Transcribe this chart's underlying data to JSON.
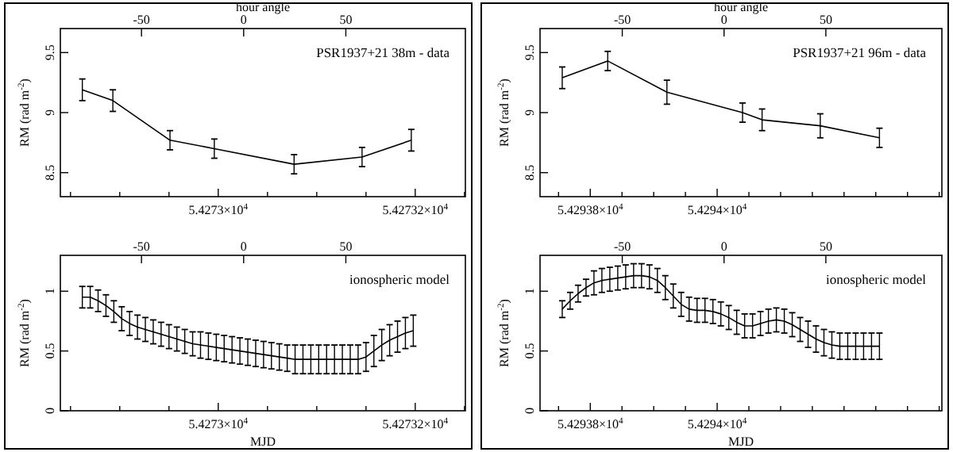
{
  "chart_data": [
    {
      "type": "line",
      "x2label": "hour angle",
      "ylabel": "RM (rad m$^{-2}$)",
      "annotations": [
        "PSR1937+21 38m - data"
      ],
      "xlim": [
        54272.8397,
        54273.2509
      ],
      "xticks": [
        {
          "value": 54272.85,
          "label": null
        },
        {
          "value": 54272.9,
          "label": null
        },
        {
          "value": 54272.95,
          "label": null
        },
        {
          "value": 54273,
          "label": "5.4273×10$^{4}$"
        },
        {
          "value": 54273.05,
          "label": null
        },
        {
          "value": 54273.1,
          "label": null
        },
        {
          "value": 54273.15,
          "label": null
        },
        {
          "value": 54273.2,
          "label": "5.42732×10$^{4}$"
        },
        {
          "value": 54273.25,
          "label": null
        }
      ],
      "x2lim": [
        -89.7,
        108.5
      ],
      "x2ticks": [
        -50,
        0,
        50
      ],
      "ylim": [
        8.3,
        9.7
      ],
      "yticks": [
        8.5,
        9,
        9.5
      ],
      "series": [
        {
          "color": "#000000",
          "x": [
            54272.862,
            54272.893,
            54272.951,
            54272.996,
            54273.077,
            54273.146,
            54273.196
          ],
          "values": [
            9.19,
            9.1,
            8.77,
            8.7,
            8.57,
            8.63,
            8.77
          ],
          "errors": [
            0.09,
            0.09,
            0.08,
            0.08,
            0.08,
            0.08,
            0.09
          ]
        }
      ]
    },
    {
      "type": "line",
      "xlabel": "MJD",
      "ylabel": "RM (rad m$^{-2}$)",
      "annotations": [
        "ionospheric model"
      ],
      "xlim": [
        54272.8397,
        54273.2509
      ],
      "xticks": [
        {
          "value": 54272.85,
          "label": null
        },
        {
          "value": 54272.9,
          "label": null
        },
        {
          "value": 54272.95,
          "label": null
        },
        {
          "value": 54273,
          "label": "5.4273×10$^{4}$"
        },
        {
          "value": 54273.05,
          "label": null
        },
        {
          "value": 54273.1,
          "label": null
        },
        {
          "value": 54273.15,
          "label": null
        },
        {
          "value": 54273.2,
          "label": "5.42732×10$^{4}$"
        },
        {
          "value": 54273.25,
          "label": null
        }
      ],
      "x2lim": [
        -89.7,
        108.5
      ],
      "x2ticks": [
        -50,
        0,
        50
      ],
      "ylim": [
        0,
        1.3
      ],
      "yticks": [
        0,
        0.5,
        1
      ],
      "series": [
        {
          "color": "#000000",
          "x": [
            54272.862,
            54272.87,
            54272.878,
            54272.886,
            54272.894,
            54272.902,
            54272.91,
            54272.918,
            54272.926,
            54272.934,
            54272.942,
            54272.95,
            54272.958,
            54272.966,
            54272.974,
            54272.982,
            54272.99,
            54272.998,
            54273.006,
            54273.014,
            54273.022,
            54273.03,
            54273.038,
            54273.046,
            54273.054,
            54273.062,
            54273.07,
            54273.078,
            54273.086,
            54273.094,
            54273.102,
            54273.11,
            54273.118,
            54273.126,
            54273.134,
            54273.142,
            54273.15,
            54273.158,
            54273.166,
            54273.174,
            54273.182,
            54273.19,
            54273.198
          ],
          "values": [
            0.95,
            0.95,
            0.92,
            0.88,
            0.83,
            0.77,
            0.73,
            0.7,
            0.68,
            0.66,
            0.64,
            0.62,
            0.6,
            0.58,
            0.56,
            0.55,
            0.54,
            0.53,
            0.52,
            0.51,
            0.5,
            0.49,
            0.48,
            0.47,
            0.46,
            0.45,
            0.44,
            0.43,
            0.43,
            0.43,
            0.43,
            0.43,
            0.43,
            0.43,
            0.43,
            0.43,
            0.45,
            0.5,
            0.55,
            0.59,
            0.62,
            0.65,
            0.67
          ],
          "errors": [
            0.09,
            0.09,
            0.09,
            0.09,
            0.09,
            0.1,
            0.1,
            0.1,
            0.1,
            0.1,
            0.1,
            0.1,
            0.1,
            0.1,
            0.1,
            0.11,
            0.11,
            0.11,
            0.11,
            0.11,
            0.11,
            0.11,
            0.11,
            0.11,
            0.11,
            0.11,
            0.11,
            0.12,
            0.12,
            0.12,
            0.12,
            0.12,
            0.12,
            0.12,
            0.12,
            0.12,
            0.12,
            0.13,
            0.13,
            0.13,
            0.13,
            0.13,
            0.13
          ]
        }
      ]
    },
    {
      "type": "line",
      "x2label": "hour angle",
      "ylabel": "RM (rad m$^{-2}$)",
      "annotations": [
        "PSR1937+21 96m - data"
      ],
      "xlim": [
        54293.7208,
        54294.3542
      ],
      "xticks": [
        {
          "value": 54293.75,
          "label": null
        },
        {
          "value": 54293.8,
          "label": "5.42938×10$^{4}$"
        },
        {
          "value": 54293.85,
          "label": null
        },
        {
          "value": 54293.9,
          "label": null
        },
        {
          "value": 54293.95,
          "label": null
        },
        {
          "value": 54294,
          "label": "5.4294×10$^{4}$"
        },
        {
          "value": 54294.05,
          "label": null
        },
        {
          "value": 54294.1,
          "label": null
        },
        {
          "value": 54294.15,
          "label": null
        },
        {
          "value": 54294.2,
          "label": null
        },
        {
          "value": 54294.25,
          "label": null
        },
        {
          "value": 54294.3,
          "label": null
        },
        {
          "value": 54294.35,
          "label": null
        }
      ],
      "x2lim": [
        -90.4,
        107
      ],
      "x2ticks": [
        -50,
        0,
        50
      ],
      "ylim": [
        8.3,
        9.7
      ],
      "yticks": [
        8.5,
        9,
        9.5
      ],
      "series": [
        {
          "color": "#000000",
          "x": [
            54293.7558,
            54293.8275,
            54293.9208,
            54294.04,
            54294.0708,
            54294.1625,
            54294.2558
          ],
          "values": [
            9.29,
            9.43,
            9.17,
            9,
            8.94,
            8.89,
            8.79
          ],
          "errors": [
            0.09,
            0.08,
            0.1,
            0.08,
            0.09,
            0.1,
            0.08
          ]
        }
      ]
    },
    {
      "type": "line",
      "xlabel": "MJD",
      "ylabel": "RM (rad m$^{-2}$)",
      "annotations": [
        "ionospheric model"
      ],
      "xlim": [
        54293.7208,
        54294.3542
      ],
      "xticks": [
        {
          "value": 54293.75,
          "label": null
        },
        {
          "value": 54293.8,
          "label": "5.42938×10$^{4}$"
        },
        {
          "value": 54293.85,
          "label": null
        },
        {
          "value": 54293.9,
          "label": null
        },
        {
          "value": 54293.95,
          "label": null
        },
        {
          "value": 54294,
          "label": "5.4294×10$^{4}$"
        },
        {
          "value": 54294.05,
          "label": null
        },
        {
          "value": 54294.1,
          "label": null
        },
        {
          "value": 54294.15,
          "label": null
        },
        {
          "value": 54294.2,
          "label": null
        },
        {
          "value": 54294.25,
          "label": null
        },
        {
          "value": 54294.3,
          "label": null
        },
        {
          "value": 54294.35,
          "label": null
        }
      ],
      "x2lim": [
        -90.4,
        107
      ],
      "x2ticks": [
        -50,
        0,
        50
      ],
      "ylim": [
        0,
        1.3
      ],
      "yticks": [
        0,
        0.5,
        1
      ],
      "series": [
        {
          "color": "#000000",
          "x": [
            54293.7558,
            54293.7683,
            54293.7808,
            54293.7933,
            54293.8058,
            54293.8183,
            54293.8308,
            54293.8433,
            54293.8558,
            54293.8683,
            54293.8808,
            54293.8933,
            54293.9058,
            54293.9183,
            54293.9308,
            54293.9433,
            54293.9558,
            54293.9683,
            54293.9808,
            54293.9933,
            54294.0058,
            54294.0183,
            54294.0308,
            54294.0433,
            54294.0558,
            54294.0683,
            54294.0808,
            54294.0933,
            54294.1058,
            54294.1183,
            54294.1308,
            54294.1433,
            54294.1558,
            54294.1683,
            54294.1808,
            54294.1933,
            54294.2058,
            54294.2183,
            54294.2308,
            54294.2433,
            54294.2558
          ],
          "values": [
            0.85,
            0.92,
            0.98,
            1.03,
            1.07,
            1.09,
            1.1,
            1.11,
            1.12,
            1.13,
            1.13,
            1.12,
            1.09,
            1.03,
            0.96,
            0.89,
            0.85,
            0.84,
            0.84,
            0.83,
            0.81,
            0.78,
            0.74,
            0.71,
            0.71,
            0.73,
            0.75,
            0.76,
            0.75,
            0.72,
            0.68,
            0.64,
            0.6,
            0.57,
            0.55,
            0.54,
            0.54,
            0.54,
            0.54,
            0.54,
            0.54
          ],
          "errors": [
            0.07,
            0.07,
            0.07,
            0.07,
            0.1,
            0.1,
            0.1,
            0.1,
            0.1,
            0.1,
            0.1,
            0.1,
            0.1,
            0.1,
            0.1,
            0.1,
            0.1,
            0.1,
            0.1,
            0.1,
            0.1,
            0.1,
            0.1,
            0.1,
            0.1,
            0.1,
            0.1,
            0.1,
            0.1,
            0.1,
            0.1,
            0.11,
            0.11,
            0.11,
            0.11,
            0.11,
            0.11,
            0.11,
            0.11,
            0.11,
            0.11
          ]
        }
      ]
    }
  ]
}
